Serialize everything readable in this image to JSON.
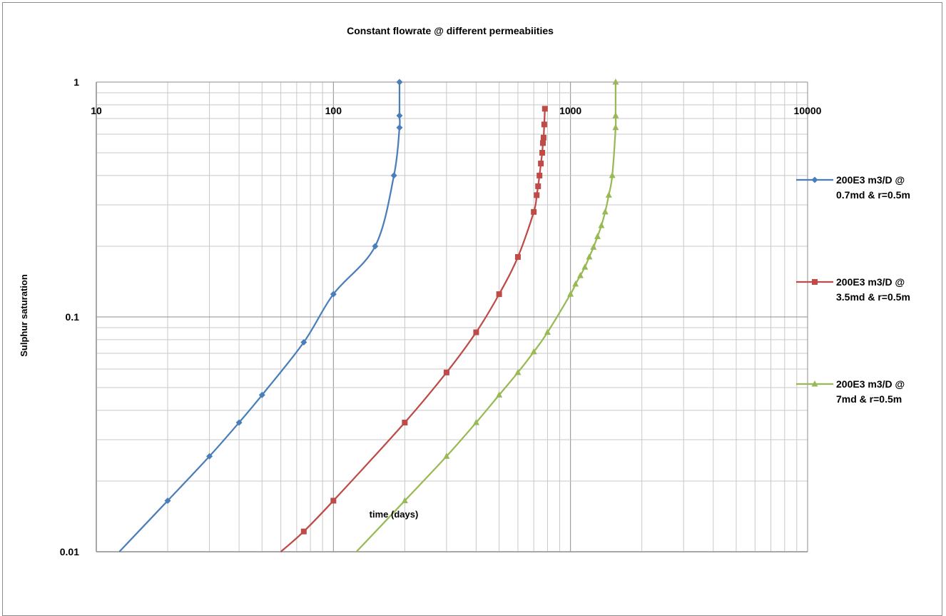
{
  "chart_data": {
    "type": "line",
    "title": "Constant flowrate @ different permeabiities",
    "xlabel": "time (days)",
    "ylabel": "Sulphur saturation",
    "xscale": "log",
    "yscale": "log",
    "xlim": [
      10,
      10000
    ],
    "ylim": [
      0.01,
      1
    ],
    "x_ticks": [
      "10",
      "100",
      "1000",
      "10000"
    ],
    "y_ticks": [
      "1",
      "0.1",
      "0.01"
    ],
    "grid": true,
    "legend": "right",
    "series": [
      {
        "name": "200E3 m3/D @ 0.7md & r=0.5m",
        "color": "#4a7ebb",
        "marker": "diamond",
        "points": [
          [
            12.5,
            0.01
          ],
          [
            20,
            0.0165
          ],
          [
            30,
            0.0255
          ],
          [
            40,
            0.0355
          ],
          [
            50,
            0.0465
          ],
          [
            75,
            0.078
          ],
          [
            100,
            0.125
          ],
          [
            150,
            0.2
          ],
          [
            180,
            0.4
          ],
          [
            190,
            0.64
          ],
          [
            190,
            0.72
          ],
          [
            190,
            1.0
          ]
        ]
      },
      {
        "name": "200E3 m3/D @ 3.5md & r=0.5m",
        "color": "#be4b48",
        "marker": "square",
        "points": [
          [
            60,
            0.01
          ],
          [
            75,
            0.0122
          ],
          [
            100,
            0.0165
          ],
          [
            200,
            0.0355
          ],
          [
            300,
            0.058
          ],
          [
            400,
            0.086
          ],
          [
            500,
            0.125
          ],
          [
            600,
            0.18
          ],
          [
            700,
            0.28
          ],
          [
            720,
            0.33
          ],
          [
            730,
            0.36
          ],
          [
            740,
            0.4
          ],
          [
            750,
            0.45
          ],
          [
            760,
            0.5
          ],
          [
            765,
            0.55
          ],
          [
            770,
            0.58
          ],
          [
            775,
            0.66
          ],
          [
            780,
            0.77
          ]
        ]
      },
      {
        "name": "200E3 m3/D @ 7md & r=0.5m",
        "color": "#98b954",
        "marker": "triangle",
        "points": [
          [
            125,
            0.01
          ],
          [
            200,
            0.0165
          ],
          [
            300,
            0.0255
          ],
          [
            400,
            0.0355
          ],
          [
            500,
            0.0465
          ],
          [
            600,
            0.058
          ],
          [
            700,
            0.071
          ],
          [
            800,
            0.086
          ],
          [
            1000,
            0.125
          ],
          [
            1050,
            0.138
          ],
          [
            1100,
            0.15
          ],
          [
            1150,
            0.163
          ],
          [
            1200,
            0.18
          ],
          [
            1250,
            0.198
          ],
          [
            1300,
            0.22
          ],
          [
            1350,
            0.245
          ],
          [
            1400,
            0.28
          ],
          [
            1450,
            0.33
          ],
          [
            1500,
            0.4
          ],
          [
            1550,
            0.64
          ],
          [
            1550,
            0.72
          ],
          [
            1550,
            1.0
          ]
        ]
      }
    ]
  }
}
